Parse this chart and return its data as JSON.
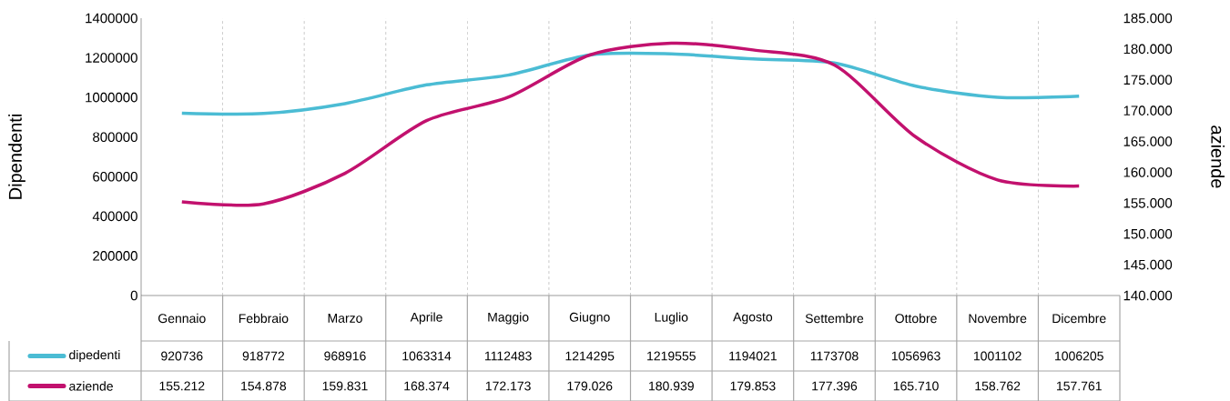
{
  "chart_data": {
    "type": "line",
    "categories": [
      "Gennaio",
      "Febbraio",
      "Marzo",
      "Aprile",
      "Maggio",
      "Giugno",
      "Luglio",
      "Agosto",
      "Settembre",
      "Ottobre",
      "Novembre",
      "Dicembre"
    ],
    "series": [
      {
        "name": "dipedenti",
        "color": "#4bbcd4",
        "values": [
          920736,
          918772,
          968916,
          1063314,
          1112483,
          1214295,
          1219555,
          1194021,
          1173708,
          1056963,
          1001102,
          1006205
        ],
        "value_labels": [
          "920736",
          "918772",
          "968916",
          "1063314",
          "1112483",
          "1214295",
          "1219555",
          "1194021",
          "1173708",
          "1056963",
          "1001102",
          "1006205"
        ]
      },
      {
        "name": "aziende",
        "color": "#c2116e",
        "axis": "y2",
        "values": [
          155212,
          154878,
          159831,
          168374,
          172173,
          179026,
          180939,
          179853,
          177396,
          165710,
          158762,
          157761
        ],
        "value_labels": [
          "155.212",
          "154.878",
          "159.831",
          "168.374",
          "172.173",
          "179.026",
          "180.939",
          "179.853",
          "177.396",
          "165.710",
          "158.762",
          "157.761"
        ]
      }
    ],
    "ylabel": "Dipendenti",
    "y2label": "aziende",
    "ylim": [
      0,
      1400000
    ],
    "yticks": [
      0,
      200000,
      400000,
      600000,
      800000,
      1000000,
      1200000,
      1400000
    ],
    "y2lim": [
      140000,
      185000
    ],
    "y2ticks": [
      {
        "value": 140000,
        "label": "140.000"
      },
      {
        "value": 145000,
        "label": "145.000"
      },
      {
        "value": 150000,
        "label": "150.000"
      },
      {
        "value": 155000,
        "label": "155.000"
      },
      {
        "value": 160000,
        "label": "160.000"
      },
      {
        "value": 165000,
        "label": "165.000"
      },
      {
        "value": 170000,
        "label": "170.000"
      },
      {
        "value": 175000,
        "label": "175.000"
      },
      {
        "value": 180000,
        "label": "180.000"
      },
      {
        "value": 185000,
        "label": "185.000"
      }
    ],
    "grid": "x",
    "legend": "bottom left",
    "marker": "none",
    "line_style": "solid"
  }
}
